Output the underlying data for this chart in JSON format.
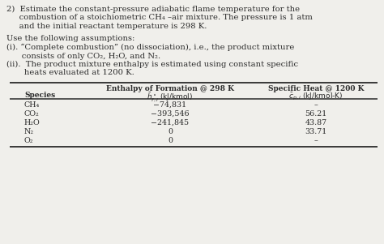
{
  "bg_color": "#f0efeb",
  "text_color": "#2a2a2a",
  "para1_l1": "2)  Estimate the constant-pressure adiabatic flame temperature for the",
  "para1_l2": "     combustion of a stoichiometric CH₄ –air mixture. The pressure is 1 atm",
  "para1_l3": "     and the initial reactant temperature is 298 K.",
  "para2_l1": "Use the following assumptions:",
  "para2_l2": "(i). “Complete combustion” (no dissociation), i.e., the product mixture",
  "para2_l3": "      consists of only CO₂, H₂O, and N₂.",
  "para2_l4": "(ii).  The product mixture enthalpy is estimated using constant specific",
  "para2_l5": "       heats evaluated at 1200 K.",
  "col1_r1": "Enthalpy of Formation @ 298 K",
  "col1_r2": "$\\bar{h}^\\circ_{f,i}$ (kJ/kmol)",
  "col2_r1": "Specific Heat @ 1200 K",
  "col2_r2": "$\\bar{c}_{p,i}$ (kJ/kmol-K)",
  "col_species": "Species",
  "species": [
    "CH₄",
    "CO₂",
    "H₂O",
    "N₂",
    "O₂"
  ],
  "enthalpy": [
    "−74,831",
    "−393,546",
    "−241,845",
    "0",
    "0"
  ],
  "sp_heat": [
    "–",
    "56.21",
    "43.87",
    "33.71",
    "–"
  ],
  "body_fs": 7.2,
  "table_fs": 6.8,
  "table_header_fs": 6.5
}
